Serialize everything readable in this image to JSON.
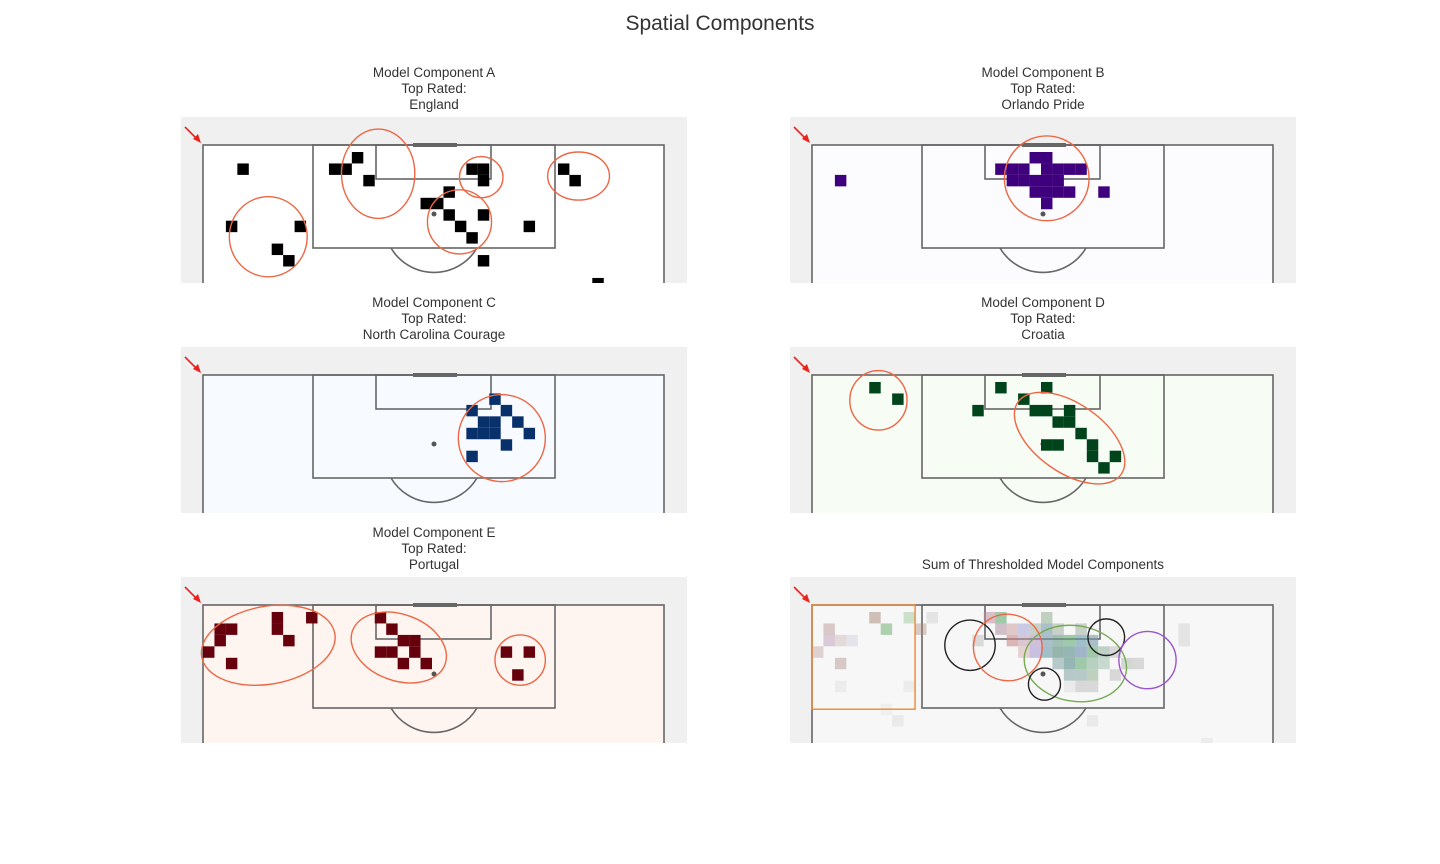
{
  "title": "Spatial Components",
  "chart_data": [
    {
      "type": "heatmap",
      "title_lines": [
        "Model Component A",
        "Top Rated:",
        "England"
      ],
      "cmap": "#000000",
      "bg": "#ffffff",
      "cells": [
        [
          3,
          1
        ],
        [
          13,
          0
        ],
        [
          11,
          1
        ],
        [
          12,
          1
        ],
        [
          14,
          2
        ],
        [
          23,
          1
        ],
        [
          24,
          1
        ],
        [
          24,
          2
        ],
        [
          31,
          1
        ],
        [
          32,
          2
        ],
        [
          19,
          4
        ],
        [
          20,
          4
        ],
        [
          21,
          3
        ],
        [
          21,
          5
        ],
        [
          22,
          6
        ],
        [
          24,
          5
        ],
        [
          23,
          7
        ],
        [
          28,
          6
        ],
        [
          2,
          6
        ],
        [
          8,
          6
        ],
        [
          6,
          8
        ],
        [
          7,
          9
        ],
        [
          24,
          9
        ],
        [
          34,
          11
        ]
      ],
      "ellipses": [
        [
          14.8,
          1.4,
          3.2,
          3.9,
          0,
          "#ee6644"
        ],
        [
          23.8,
          1.7,
          1.9,
          1.8,
          0,
          "#ee6644"
        ],
        [
          32.3,
          1.6,
          2.7,
          2.1,
          0,
          "#ee6644"
        ],
        [
          21.9,
          5.6,
          2.8,
          2.8,
          0,
          "#ee6644"
        ],
        [
          5.2,
          6.9,
          3.4,
          3.5,
          0,
          "#ee6644"
        ]
      ],
      "rects": []
    },
    {
      "type": "heatmap",
      "title_lines": [
        "Model Component B",
        "Top Rated:",
        "Orlando Pride"
      ],
      "cmap": "#3f007d",
      "bg": "#fcfbfd",
      "cells": [
        [
          2,
          2
        ],
        [
          16,
          1
        ],
        [
          17,
          1
        ],
        [
          18,
          1
        ],
        [
          19,
          0
        ],
        [
          20,
          0
        ],
        [
          21,
          1
        ],
        [
          22,
          1
        ],
        [
          23,
          1
        ],
        [
          20,
          1
        ],
        [
          17,
          2
        ],
        [
          18,
          2
        ],
        [
          19,
          2
        ],
        [
          20,
          2
        ],
        [
          21,
          2
        ],
        [
          19,
          3
        ],
        [
          20,
          3
        ],
        [
          21,
          3
        ],
        [
          22,
          3
        ],
        [
          25,
          3
        ],
        [
          20,
          4
        ]
      ],
      "ellipses": [
        [
          20.0,
          1.8,
          3.7,
          3.7,
          0,
          "#ee6644"
        ]
      ],
      "rects": []
    },
    {
      "type": "heatmap",
      "title_lines": [
        "Model Component C",
        "Top Rated:",
        "North Carolina Courage"
      ],
      "cmap": "#08306b",
      "bg": "#f7fbff",
      "cells": [
        [
          25,
          1
        ],
        [
          23,
          2
        ],
        [
          26,
          2
        ],
        [
          24,
          3
        ],
        [
          25,
          3
        ],
        [
          27,
          3
        ],
        [
          23,
          4
        ],
        [
          24,
          4
        ],
        [
          25,
          4
        ],
        [
          28,
          4
        ],
        [
          26,
          5
        ],
        [
          23,
          6
        ]
      ],
      "ellipses": [
        [
          25.6,
          4.4,
          3.8,
          3.8,
          0,
          "#ee6644"
        ]
      ],
      "rects": []
    },
    {
      "type": "heatmap",
      "title_lines": [
        "Model Component D",
        "Top Rated:",
        "Croatia"
      ],
      "cmap": "#00441b",
      "bg": "#f7fcf5",
      "cells": [
        [
          5,
          0
        ],
        [
          7,
          1
        ],
        [
          16,
          0
        ],
        [
          20,
          0
        ],
        [
          18,
          1
        ],
        [
          14,
          2
        ],
        [
          19,
          2
        ],
        [
          20,
          2
        ],
        [
          22,
          2
        ],
        [
          21,
          3
        ],
        [
          22,
          3
        ],
        [
          20,
          5
        ],
        [
          21,
          5
        ],
        [
          23,
          4
        ],
        [
          24,
          5
        ],
        [
          24,
          6
        ],
        [
          26,
          6
        ],
        [
          25,
          7
        ]
      ],
      "ellipses": [
        [
          5.3,
          1.1,
          2.5,
          2.6,
          0,
          "#ee6644"
        ],
        [
          22.0,
          4.4,
          5.5,
          3.0,
          35,
          "#ee6644"
        ]
      ],
      "rects": []
    },
    {
      "type": "heatmap",
      "title_lines": [
        "Model Component E",
        "Top Rated:",
        "Portugal"
      ],
      "cmap": "#67000d",
      "bg": "#fff5f0",
      "cells": [
        [
          1,
          1
        ],
        [
          2,
          1
        ],
        [
          1,
          2
        ],
        [
          0,
          3
        ],
        [
          2,
          4
        ],
        [
          6,
          0
        ],
        [
          6,
          1
        ],
        [
          9,
          0
        ],
        [
          7,
          2
        ],
        [
          15,
          0
        ],
        [
          16,
          1
        ],
        [
          15,
          3
        ],
        [
          17,
          2
        ],
        [
          16,
          3
        ],
        [
          18,
          3
        ],
        [
          18,
          2
        ],
        [
          17,
          4
        ],
        [
          19,
          4
        ],
        [
          26,
          3
        ],
        [
          28,
          3
        ],
        [
          27,
          5
        ]
      ],
      "ellipses": [
        [
          5.2,
          2.4,
          5.9,
          3.4,
          -10,
          "#ee6644"
        ],
        [
          16.6,
          2.6,
          4.3,
          2.9,
          20,
          "#ee6644"
        ],
        [
          27.2,
          3.7,
          2.2,
          2.2,
          0,
          "#ee6644"
        ]
      ],
      "rects": []
    },
    {
      "type": "heatmap",
      "title_lines": [
        "",
        "",
        "Sum of Thresholded Model Components"
      ],
      "cmap": "mixed",
      "bg": "#f7f7f7",
      "cells": [
        [
          5,
          0,
          "#aa8877",
          0.5
        ],
        [
          6,
          1,
          "#66aa66",
          0.5
        ],
        [
          8,
          0,
          "#66aa66",
          0.3
        ],
        [
          9,
          1,
          "#aa8877",
          0.4
        ],
        [
          10,
          0,
          "#999999",
          0.2
        ],
        [
          1,
          1,
          "#bb9999",
          0.5
        ],
        [
          1,
          2,
          "#aa88aa",
          0.4
        ],
        [
          2,
          2,
          "#bb9999",
          0.3
        ],
        [
          0,
          3,
          "#bb9999",
          0.4
        ],
        [
          2,
          4,
          "#bb9999",
          0.5
        ],
        [
          3,
          2,
          "#bbbbcc",
          0.3
        ],
        [
          2,
          6,
          "#dddddd",
          0.4
        ],
        [
          8,
          6,
          "#dddddd",
          0.4
        ],
        [
          6,
          8,
          "#dddddd",
          0.3
        ],
        [
          7,
          9,
          "#dddddd",
          0.5
        ],
        [
          14,
          2,
          "#999999",
          0.3
        ],
        [
          15,
          0,
          "#bb8899",
          0.5
        ],
        [
          16,
          0,
          "#66aa77",
          0.6
        ],
        [
          16,
          1,
          "#aa8899",
          0.5
        ],
        [
          17,
          1,
          "#cc9999",
          0.5
        ],
        [
          17,
          2,
          "#cc8888",
          0.6
        ],
        [
          18,
          2,
          "#bb99aa",
          0.5
        ],
        [
          18,
          1,
          "#8888cc",
          0.4
        ],
        [
          18,
          3,
          "#cc9999",
          0.4
        ],
        [
          19,
          1,
          "#99aa99",
          0.5
        ],
        [
          19,
          2,
          "#aa88bb",
          0.5
        ],
        [
          19,
          3,
          "#9988cc",
          0.5
        ],
        [
          20,
          0,
          "#88aa88",
          0.5
        ],
        [
          20,
          1,
          "#7799aa",
          0.6
        ],
        [
          20,
          2,
          "#7799aa",
          0.6
        ],
        [
          20,
          3,
          "#6699aa",
          0.6
        ],
        [
          21,
          1,
          "#99aa99",
          0.5
        ],
        [
          21,
          2,
          "#669988",
          0.6
        ],
        [
          21,
          3,
          "#558877",
          0.6
        ],
        [
          21,
          4,
          "#779999",
          0.5
        ],
        [
          22,
          2,
          "#66aa77",
          0.6
        ],
        [
          22,
          3,
          "#558888",
          0.6
        ],
        [
          22,
          4,
          "#558888",
          0.6
        ],
        [
          22,
          5,
          "#779999",
          0.5
        ],
        [
          23,
          1,
          "#99aa99",
          0.5
        ],
        [
          23,
          2,
          "#6699aa",
          0.6
        ],
        [
          23,
          3,
          "#6688aa",
          0.6
        ],
        [
          23,
          4,
          "#66aa77",
          0.6
        ],
        [
          23,
          5,
          "#779999",
          0.5
        ],
        [
          23,
          6,
          "#aaaaaa",
          0.4
        ],
        [
          24,
          2,
          "#7799aa",
          0.6
        ],
        [
          24,
          3,
          "#66aa77",
          0.6
        ],
        [
          24,
          4,
          "#77aa88",
          0.5
        ],
        [
          24,
          5,
          "#88aa88",
          0.5
        ],
        [
          24,
          6,
          "#aaaaaa",
          0.4
        ],
        [
          25,
          3,
          "#88aa99",
          0.5
        ],
        [
          25,
          4,
          "#99bbaa",
          0.5
        ],
        [
          26,
          3,
          "#aaaaaa",
          0.4
        ],
        [
          26,
          5,
          "#aaaaaa",
          0.4
        ],
        [
          27,
          4,
          "#99aa99",
          0.4
        ],
        [
          28,
          4,
          "#aaaaaa",
          0.4
        ],
        [
          22,
          6,
          "#dddddd",
          0.5
        ],
        [
          24,
          9,
          "#dddddd",
          0.5
        ],
        [
          32,
          1,
          "#bbbbbb",
          0.3
        ],
        [
          32,
          2,
          "#bbbbbb",
          0.3
        ],
        [
          34,
          11,
          "#dddddd",
          0.4
        ]
      ],
      "ellipses": [
        [
          13.3,
          2.4,
          2.2,
          2.2,
          0,
          "#222222"
        ],
        [
          16.6,
          2.6,
          3.0,
          2.9,
          10,
          "#ee6644"
        ],
        [
          22.5,
          4.0,
          4.5,
          3.3,
          10,
          "#77aa55"
        ],
        [
          25.2,
          1.7,
          1.6,
          1.6,
          0,
          "#222222"
        ],
        [
          28.8,
          3.7,
          2.5,
          2.5,
          0,
          "#9955cc"
        ],
        [
          19.8,
          5.8,
          1.4,
          1.4,
          0,
          "#222222"
        ]
      ],
      "rects": [
        [
          0,
          0,
          9,
          9.1,
          "#ee8833"
        ]
      ]
    }
  ]
}
